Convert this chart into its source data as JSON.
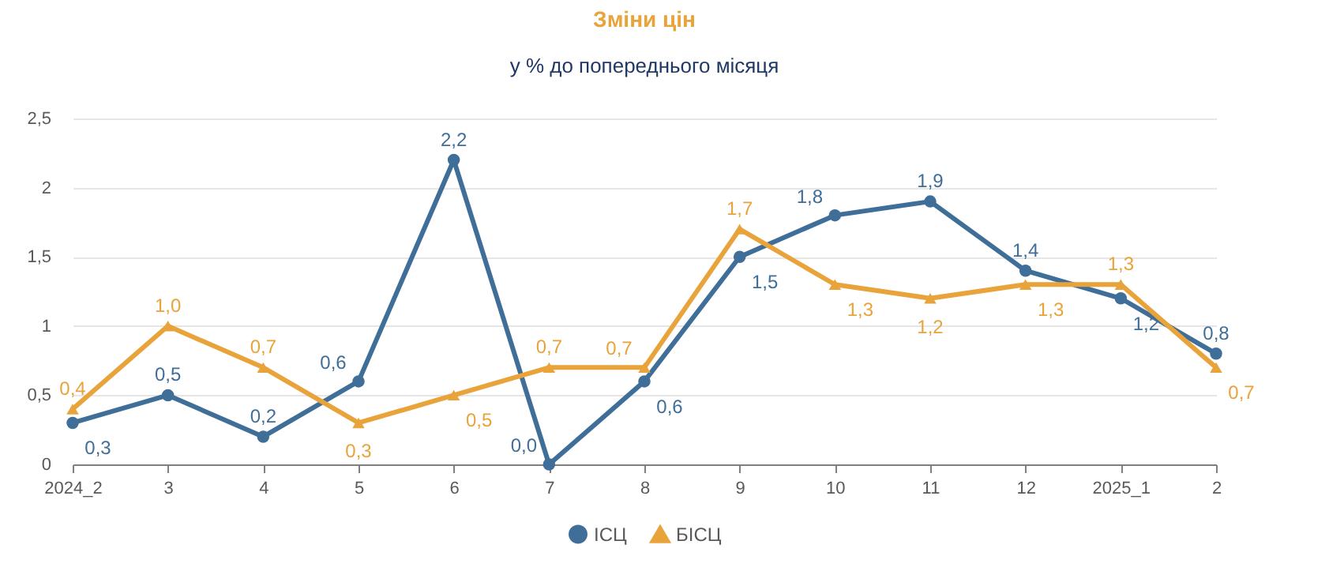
{
  "chart_data": {
    "type": "line",
    "title": "Зміни цін",
    "subtitle": "у % до попереднього місяця",
    "categories": [
      "2024_2",
      "3",
      "4",
      "5",
      "6",
      "7",
      "8",
      "9",
      "10",
      "11",
      "12",
      "2025_1",
      "2"
    ],
    "series": [
      {
        "name": "ІСЦ",
        "color": "#3f6e98",
        "marker": "circle",
        "values": [
          0.3,
          0.5,
          0.2,
          0.6,
          2.2,
          0.0,
          0.6,
          1.5,
          1.8,
          1.9,
          1.4,
          1.2,
          0.8
        ],
        "value_labels": [
          "0,3",
          "0,5",
          "0,2",
          "0,6",
          "2,2",
          "0,0",
          "0,6",
          "1,5",
          "1,8",
          "1,9",
          "1,4",
          "1,2",
          "0,8"
        ]
      },
      {
        "name": "БІСЦ",
        "color": "#e8a33a",
        "marker": "triangle",
        "values": [
          0.4,
          1.0,
          0.7,
          0.3,
          0.5,
          0.7,
          0.7,
          1.7,
          1.3,
          1.2,
          1.3,
          1.3,
          0.7
        ],
        "value_labels": [
          "0,4",
          "1,0",
          "0,7",
          "0,3",
          "0,5",
          "0,7",
          "0,7",
          "1,7",
          "1,3",
          "1,2",
          "1,3",
          "1,3",
          "0,7"
        ]
      }
    ],
    "ylim": [
      0,
      2.5
    ],
    "yticks": [
      {
        "value": 0,
        "label": "0"
      },
      {
        "value": 0.5,
        "label": "0,5"
      },
      {
        "value": 1,
        "label": "1"
      },
      {
        "value": 1.5,
        "label": "1,5"
      },
      {
        "value": 2,
        "label": "2"
      },
      {
        "value": 2.5,
        "label": "2,5"
      }
    ],
    "grid": "y",
    "legend": "bottom",
    "line_style": "solid"
  }
}
